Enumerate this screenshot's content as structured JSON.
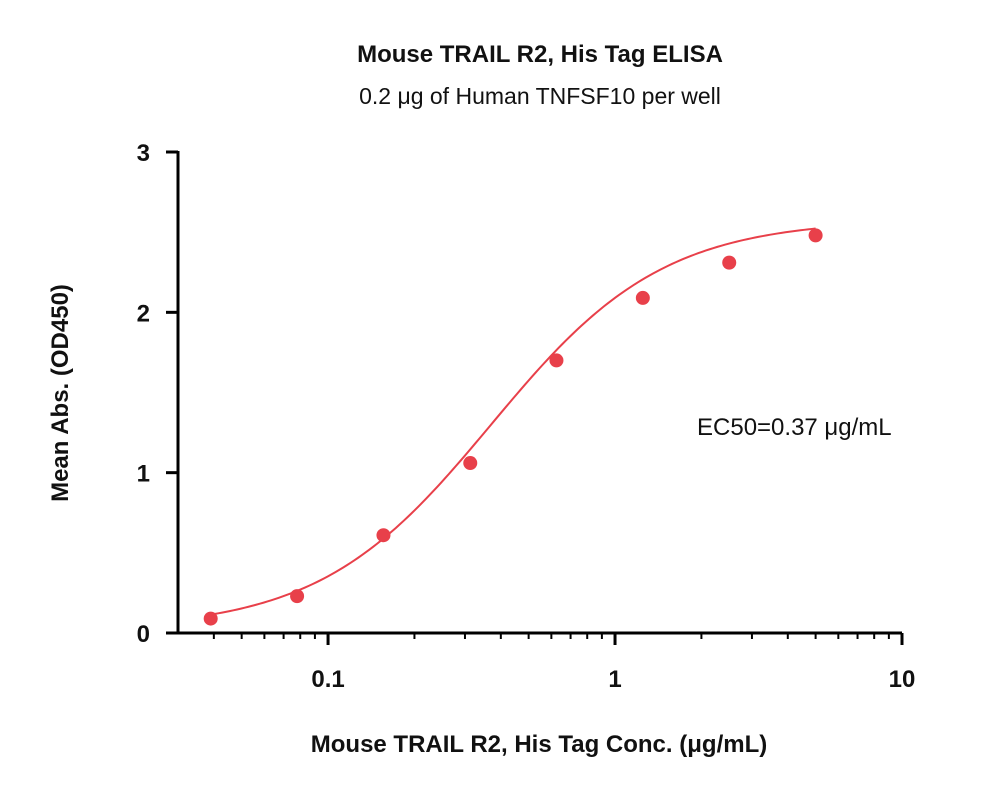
{
  "chart_data": {
    "type": "scatter",
    "title": "Mouse TRAIL R2, His Tag ELISA",
    "subtitle": "0.2 μg of Human TNFSF10 per well",
    "xlabel": "Mouse TRAIL R2, His Tag Conc. (μg/mL)",
    "ylabel": "Mean Abs. (OD450)",
    "x_scale": "log",
    "xlim": [
      0.03,
      10
    ],
    "ylim": [
      0,
      3
    ],
    "x_ticks": [
      0.1,
      1,
      10
    ],
    "x_tick_labels": [
      "0.1",
      "1",
      "10"
    ],
    "y_ticks": [
      0,
      1,
      2,
      3
    ],
    "y_tick_labels": [
      "0",
      "1",
      "2",
      "3"
    ],
    "grid": false,
    "color": "#e8404a",
    "series": [
      {
        "x": [
          0.039,
          0.078,
          0.156,
          0.313,
          0.625,
          1.25,
          2.5,
          5
        ],
        "y": [
          0.09,
          0.23,
          0.61,
          1.06,
          1.7,
          2.09,
          2.31,
          2.48
        ]
      }
    ],
    "fit": {
      "model": "4PL",
      "bottom": 0.02,
      "top": 2.58,
      "ec50": 0.37,
      "hill": 1.45
    },
    "annotation": "EC50=0.37 μg/mL"
  }
}
